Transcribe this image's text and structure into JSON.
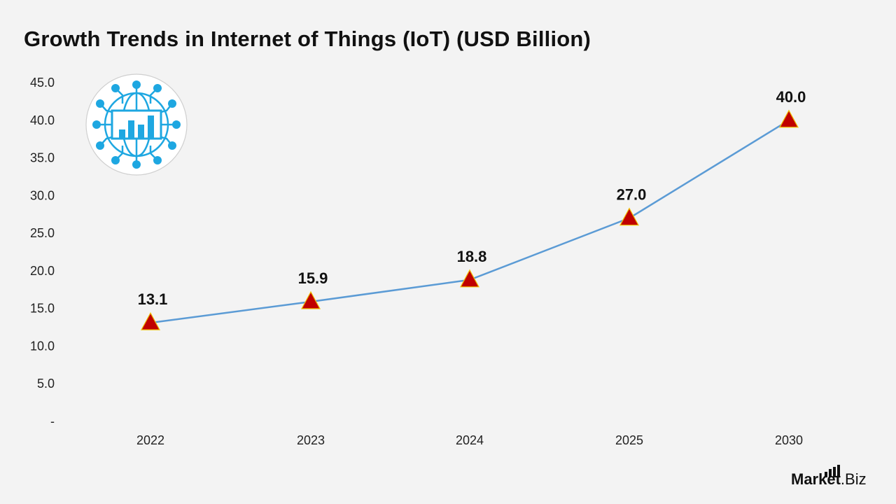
{
  "chart_data": {
    "type": "line",
    "title": "Growth Trends in Internet of Things (IoT) (USD Billion)",
    "categories": [
      "2022",
      "2023",
      "2024",
      "2025",
      "2030"
    ],
    "series": [
      {
        "values": [
          13.1,
          15.9,
          18.8,
          27.0,
          40.0
        ]
      }
    ],
    "data_labels": [
      "13.1",
      "15.9",
      "18.8",
      "27.0",
      "40.0"
    ],
    "y_ticks": [
      "-",
      "5.0",
      "10.0",
      "15.0",
      "20.0",
      "25.0",
      "30.0",
      "35.0",
      "40.0",
      "45.0"
    ],
    "ylim": [
      0,
      45
    ],
    "grid": false,
    "marker": "triangle",
    "colors": {
      "line": "#5b9bd5",
      "marker_fill": "#c00000",
      "marker_stroke": "#f0c000"
    }
  },
  "icon": {
    "name": "globe-network-chart-icon",
    "color": "#1ea7e1"
  },
  "brand": {
    "main": "Market",
    "suffix": ".Biz"
  }
}
